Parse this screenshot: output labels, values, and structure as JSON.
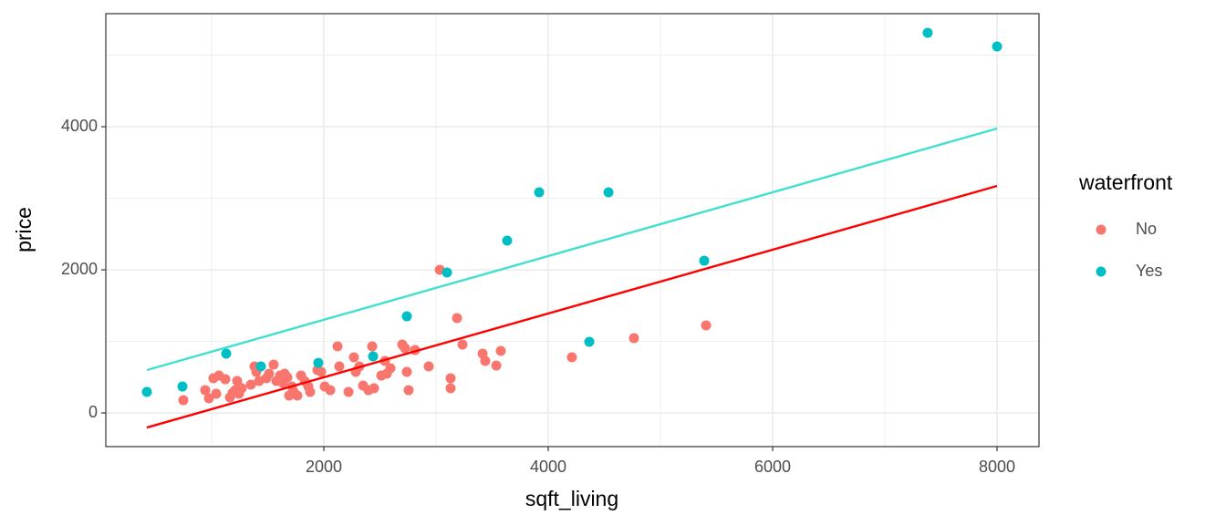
{
  "chart_data": {
    "type": "scatter",
    "x_label": "sqft_living",
    "y_label": "price",
    "legend_title": "waterfront",
    "legend_position": "right",
    "xlim": [
      57,
      8374
    ],
    "ylim": [
      -471,
      5580
    ],
    "xticks": [
      2000,
      4000,
      6000,
      8000
    ],
    "yticks": [
      0,
      2000,
      4000
    ],
    "x_minor_grid": [
      1000,
      3000,
      5000,
      7000
    ],
    "y_minor_grid": [
      1000,
      3000,
      5000
    ],
    "grid": true,
    "series": [
      {
        "name": "No",
        "color": "#F8766D",
        "x": [
          748,
          943,
          976,
          1016,
          1041,
          1065,
          1122,
          1163,
          1187,
          1211,
          1228,
          1244,
          1268,
          1350,
          1382,
          1398,
          1423,
          1488,
          1512,
          1553,
          1577,
          1610,
          1634,
          1650,
          1675,
          1691,
          1715,
          1732,
          1764,
          1797,
          1829,
          1862,
          1878,
          1943,
          1976,
          2008,
          2057,
          2122,
          2138,
          2220,
          2268,
          2285,
          2317,
          2350,
          2398,
          2431,
          2447,
          2512,
          2545,
          2561,
          2594,
          2699,
          2724,
          2740,
          2756,
          2813,
          2935,
          3033,
          3130,
          3130,
          3187,
          3236,
          3415,
          3439,
          3537,
          3577,
          4211,
          4764,
          5407
        ],
        "y": [
          178,
          318,
          204,
          484,
          268,
          522,
          471,
          217,
          280,
          318,
          446,
          268,
          344,
          395,
          650,
          573,
          446,
          484,
          548,
          675,
          446,
          522,
          420,
          548,
          497,
          242,
          369,
          293,
          242,
          522,
          446,
          369,
          293,
          599,
          573,
          369,
          318,
          930,
          650,
          293,
          777,
          573,
          650,
          382,
          318,
          930,
          344,
          522,
          726,
          548,
          624,
          955,
          904,
          573,
          318,
          879,
          650,
          2000,
          484,
          344,
          1325,
          955,
          828,
          726,
          662,
          866,
          777,
          1045,
          1223
        ],
        "fit": {
          "color": "#FF0000",
          "x": [
            423,
            8000
          ],
          "y": [
            -204,
            3172
          ]
        }
      },
      {
        "name": "Yes",
        "color": "#00BFC4",
        "x": [
          423,
          740,
          1130,
          1439,
          1951,
          2439,
          2740,
          3098,
          3634,
          3919,
          4366,
          4537,
          5390,
          7382,
          8000
        ],
        "y": [
          293,
          369,
          828,
          650,
          700,
          790,
          1350,
          1962,
          2408,
          3083,
          994,
          3083,
          2127,
          5312,
          5121
        ],
        "fit": {
          "color": "#40E0D0",
          "x": [
            423,
            8000
          ],
          "y": [
            599,
            3975
          ]
        }
      }
    ]
  }
}
